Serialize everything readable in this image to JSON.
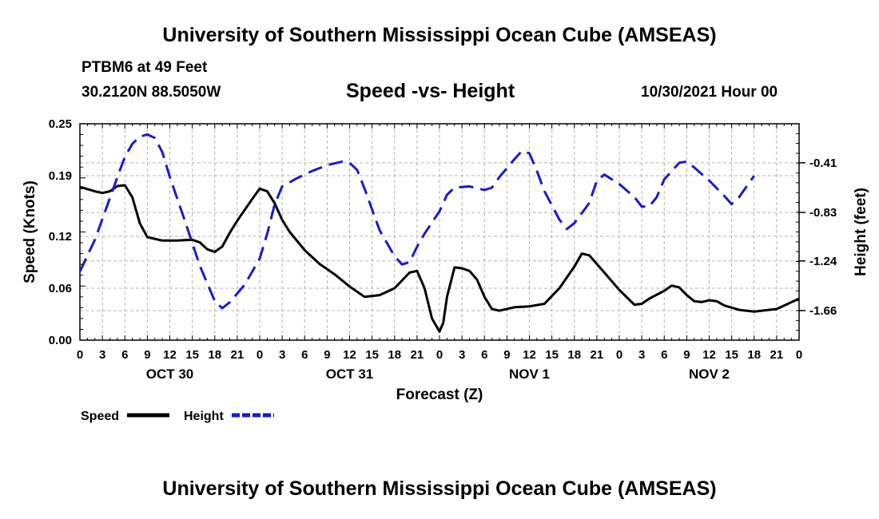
{
  "page": {
    "title": "University of Southern Mississippi Ocean Cube (AMSEAS)",
    "footer_title": "University of Southern Mississippi Ocean Cube (AMSEAS)",
    "station": "PTBM6 at 49 Feet",
    "coords": "30.2120N  88.5050W",
    "subtitle": "Speed -vs- Height",
    "datetime": "10/30/2021 Hour 00"
  },
  "chart_data": {
    "type": "line",
    "title": "Speed -vs- Height",
    "xlabel": "Forecast (Z)",
    "ylabel_left": "Speed (Knots)",
    "ylabel_right": "Height (feet)",
    "x_hours": [
      0,
      3,
      6,
      9,
      12,
      15,
      18,
      21,
      24,
      27,
      30,
      33,
      36,
      39,
      42,
      45,
      48,
      51,
      54,
      57,
      60,
      63,
      66,
      69,
      72,
      75,
      78,
      81,
      84,
      87,
      90,
      93,
      96
    ],
    "x_tick_labels": [
      "0",
      "3",
      "6",
      "9",
      "12",
      "15",
      "18",
      "21",
      "0",
      "3",
      "6",
      "9",
      "12",
      "15",
      "18",
      "21",
      "0",
      "3",
      "6",
      "9",
      "12",
      "15",
      "18",
      "21",
      "0",
      "3",
      "6",
      "9",
      "12",
      "15",
      "18",
      "21",
      "0"
    ],
    "day_labels": [
      {
        "label": "OCT 30",
        "hour": 12
      },
      {
        "label": "OCT 31",
        "hour": 36
      },
      {
        "label": "NOV 1",
        "hour": 60
      },
      {
        "label": "NOV 2",
        "hour": 84
      }
    ],
    "y_left": {
      "range": [
        0,
        0.25
      ],
      "ticks": [
        "0.00",
        "0.06",
        "0.12",
        "0.19",
        "0.25"
      ]
    },
    "y_right": {
      "range": [
        -1.91,
        -0.08
      ],
      "ticks": [
        "-0.41",
        "-0.83",
        "-1.24",
        "-1.66"
      ]
    },
    "grid": true,
    "legend": {
      "position": "bottom-left",
      "entries": [
        {
          "name": "Speed",
          "color": "#000000",
          "dash": "solid"
        },
        {
          "name": "Height",
          "color": "#1a1acc",
          "dash": "dashed"
        }
      ]
    },
    "series": [
      {
        "name": "Speed",
        "axis": "left",
        "color": "#000000",
        "points": [
          [
            0,
            0.177
          ],
          [
            2,
            0.172
          ],
          [
            3,
            0.17
          ],
          [
            4,
            0.172
          ],
          [
            5,
            0.178
          ],
          [
            6,
            0.179
          ],
          [
            7,
            0.165
          ],
          [
            8,
            0.135
          ],
          [
            9,
            0.119
          ],
          [
            11,
            0.115
          ],
          [
            13,
            0.115
          ],
          [
            15,
            0.116
          ],
          [
            16,
            0.113
          ],
          [
            17,
            0.105
          ],
          [
            18,
            0.102
          ],
          [
            19,
            0.108
          ],
          [
            20,
            0.124
          ],
          [
            21,
            0.138
          ],
          [
            23,
            0.163
          ],
          [
            24,
            0.175
          ],
          [
            25,
            0.172
          ],
          [
            26,
            0.158
          ],
          [
            27,
            0.139
          ],
          [
            28,
            0.125
          ],
          [
            30,
            0.104
          ],
          [
            32,
            0.088
          ],
          [
            34,
            0.076
          ],
          [
            36,
            0.062
          ],
          [
            38,
            0.05
          ],
          [
            40,
            0.052
          ],
          [
            42,
            0.06
          ],
          [
            44,
            0.078
          ],
          [
            45,
            0.08
          ],
          [
            46,
            0.06
          ],
          [
            47,
            0.025
          ],
          [
            48,
            0.01
          ],
          [
            48.5,
            0.02
          ],
          [
            49,
            0.05
          ],
          [
            50,
            0.084
          ],
          [
            51,
            0.083
          ],
          [
            52,
            0.08
          ],
          [
            53,
            0.07
          ],
          [
            54,
            0.05
          ],
          [
            55,
            0.036
          ],
          [
            56,
            0.034
          ],
          [
            58,
            0.038
          ],
          [
            60,
            0.039
          ],
          [
            62,
            0.042
          ],
          [
            64,
            0.06
          ],
          [
            66,
            0.085
          ],
          [
            67,
            0.1
          ],
          [
            68,
            0.098
          ],
          [
            70,
            0.078
          ],
          [
            72,
            0.058
          ],
          [
            74,
            0.041
          ],
          [
            75,
            0.042
          ],
          [
            76,
            0.048
          ],
          [
            78,
            0.057
          ],
          [
            79,
            0.063
          ],
          [
            80,
            0.061
          ],
          [
            81,
            0.052
          ],
          [
            82,
            0.045
          ],
          [
            83,
            0.044
          ],
          [
            84,
            0.046
          ],
          [
            85,
            0.045
          ],
          [
            86,
            0.04
          ],
          [
            88,
            0.035
          ],
          [
            90,
            0.033
          ],
          [
            93,
            0.036
          ],
          [
            96,
            0.048
          ]
        ]
      },
      {
        "name": "Height",
        "axis": "right",
        "color": "#1a1acc",
        "points": [
          [
            0,
            -1.33
          ],
          [
            2,
            -1.06
          ],
          [
            4,
            -0.71
          ],
          [
            5,
            -0.53
          ],
          [
            6,
            -0.36
          ],
          [
            7,
            -0.25
          ],
          [
            8,
            -0.19
          ],
          [
            9,
            -0.17
          ],
          [
            10,
            -0.2
          ],
          [
            11,
            -0.32
          ],
          [
            12,
            -0.53
          ],
          [
            14,
            -0.9
          ],
          [
            16,
            -1.28
          ],
          [
            18,
            -1.58
          ],
          [
            19,
            -1.64
          ],
          [
            20,
            -1.59
          ],
          [
            22,
            -1.44
          ],
          [
            24,
            -1.22
          ],
          [
            25,
            -1.01
          ],
          [
            26,
            -0.76
          ],
          [
            27,
            -0.61
          ],
          [
            29,
            -0.54
          ],
          [
            31,
            -0.48
          ],
          [
            33,
            -0.43
          ],
          [
            35,
            -0.4
          ],
          [
            36,
            -0.41
          ],
          [
            37,
            -0.47
          ],
          [
            38,
            -0.63
          ],
          [
            40,
            -0.98
          ],
          [
            42,
            -1.2
          ],
          [
            43,
            -1.27
          ],
          [
            44,
            -1.25
          ],
          [
            45,
            -1.12
          ],
          [
            46,
            -1.01
          ],
          [
            48,
            -0.82
          ],
          [
            49,
            -0.68
          ],
          [
            50,
            -0.62
          ],
          [
            52,
            -0.61
          ],
          [
            54,
            -0.64
          ],
          [
            55,
            -0.62
          ],
          [
            56,
            -0.53
          ],
          [
            58,
            -0.38
          ],
          [
            59,
            -0.31
          ],
          [
            60,
            -0.33
          ],
          [
            61,
            -0.48
          ],
          [
            62,
            -0.65
          ],
          [
            64,
            -0.89
          ],
          [
            65,
            -0.97
          ],
          [
            66,
            -0.92
          ],
          [
            68,
            -0.75
          ],
          [
            69,
            -0.56
          ],
          [
            70,
            -0.51
          ],
          [
            72,
            -0.59
          ],
          [
            74,
            -0.7
          ],
          [
            75,
            -0.78
          ],
          [
            76,
            -0.78
          ],
          [
            77,
            -0.7
          ],
          [
            78,
            -0.55
          ],
          [
            80,
            -0.41
          ],
          [
            81,
            -0.4
          ],
          [
            82,
            -0.45
          ],
          [
            84,
            -0.56
          ],
          [
            86,
            -0.69
          ],
          [
            87,
            -0.76
          ],
          [
            88,
            -0.7
          ],
          [
            90,
            -0.52
          ]
        ]
      }
    ]
  }
}
